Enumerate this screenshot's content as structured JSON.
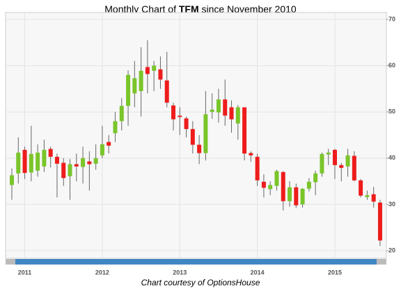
{
  "chart_data": {
    "type": "candlestick",
    "title": [
      "Monthly Chart of ",
      "TFM",
      " since November 2010"
    ],
    "footer": "Chart courtesy of OptionsHouse",
    "categories": [
      null,
      null,
      "2011",
      null,
      null,
      null,
      null,
      null,
      null,
      null,
      null,
      null,
      null,
      null,
      "2012",
      null,
      null,
      null,
      null,
      null,
      null,
      null,
      null,
      null,
      null,
      null,
      "2013",
      null,
      null,
      null,
      null,
      null,
      null,
      null,
      null,
      null,
      null,
      null,
      "2014",
      null,
      null,
      null,
      null,
      null,
      null,
      null,
      null,
      null,
      null,
      null,
      "2015",
      null,
      null,
      null,
      null,
      null,
      null,
      null
    ],
    "open": [
      34.2,
      36.7,
      41.8,
      36.9,
      37.3,
      38.2,
      42,
      40.3,
      39,
      36.1,
      38.7,
      38.1,
      39.3,
      38.8,
      40.6,
      43.5,
      45.4,
      48,
      51.3,
      54,
      54.5,
      59.7,
      58.9,
      59.2,
      56.8,
      51.4,
      49.2,
      48.6,
      46.3,
      42.9,
      41.1,
      50,
      49.9,
      52.7,
      51,
      47.5,
      51,
      41.1,
      40.3,
      34.9,
      33.3,
      34,
      37,
      30.7,
      33.7,
      30,
      33.4,
      34.8,
      36.7,
      40.8,
      41.8,
      38.5,
      38.2,
      40.5,
      35.2,
      31.6,
      32.2,
      30.4
    ],
    "high": [
      37.8,
      44.5,
      42.5,
      47,
      43,
      44,
      42.5,
      41,
      40,
      39.8,
      41,
      42.5,
      41.5,
      43,
      47,
      45,
      50,
      53,
      59,
      61,
      64,
      65.5,
      61,
      62,
      63,
      52,
      51,
      49,
      48,
      45,
      54.5,
      54,
      55,
      57,
      52.5,
      51.5,
      51,
      41.5,
      41,
      36.5,
      35,
      37.5,
      37.2,
      35,
      34.5,
      33.5,
      35.7,
      37.3,
      41.2,
      42,
      42,
      39,
      42,
      41.5,
      35.5,
      33,
      33.8,
      31
    ],
    "low": [
      31,
      34.5,
      35.5,
      35,
      36,
      37,
      38,
      31.5,
      34,
      31,
      35,
      34.5,
      33,
      37.5,
      40,
      41,
      43.5,
      46,
      47,
      51,
      49,
      54,
      54.5,
      55,
      51,
      46,
      45,
      44.5,
      41,
      38.7,
      39.5,
      48.5,
      47.7,
      47,
      45.5,
      44,
      39.5,
      39.2,
      34,
      31.5,
      32,
      33,
      28.7,
      29.5,
      29.2,
      29.3,
      32.8,
      32,
      36,
      38.5,
      35.5,
      35,
      36,
      35,
      31.5,
      31,
      29.3,
      21
    ],
    "close": [
      36.3,
      41.2,
      36.8,
      40.9,
      41.2,
      41.8,
      40.3,
      38.8,
      35.7,
      38.7,
      38.2,
      40,
      38.7,
      40,
      43,
      42.7,
      48,
      51.3,
      58,
      57.3,
      58.9,
      58.2,
      60,
      57,
      52,
      48.4,
      48.9,
      46.3,
      42.9,
      41.1,
      49.5,
      50.5,
      52.7,
      49.2,
      48.4,
      51,
      41,
      40.6,
      35.2,
      33.6,
      34.2,
      37.2,
      30.7,
      33.7,
      29.8,
      33.4,
      34.9,
      36.7,
      40.9,
      41.2,
      38.5,
      37.9,
      40.6,
      35.2,
      31.9,
      32,
      30.6,
      22.2
    ],
    "up_color": "#7ac52a",
    "down_color": "#ee1c1c",
    "ylim": [
      18.5,
      71.5
    ],
    "yticks": [
      20,
      30,
      40,
      50,
      60,
      70
    ],
    "grid": true
  }
}
